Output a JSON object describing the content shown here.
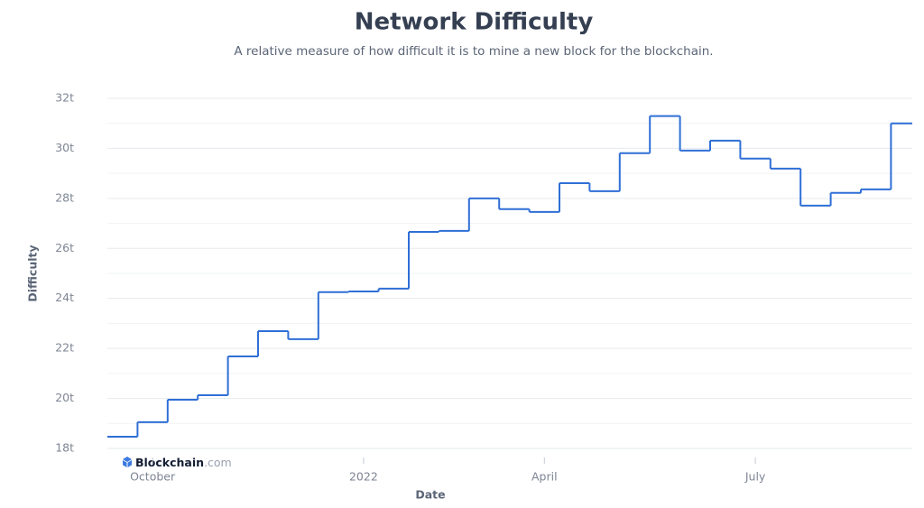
{
  "chart_data": {
    "type": "step",
    "title": "Network Difficulty",
    "subtitle": "A relative measure of how difficult it is to mine a new block for the blockchain.",
    "x_label": "Date",
    "y_label": "Difficulty",
    "watermark": {
      "name": "Blockchain",
      "domain": ".com"
    },
    "categories": [
      null,
      "October",
      null,
      null,
      null,
      null,
      null,
      null,
      "2022",
      null,
      null,
      null,
      null,
      null,
      "April",
      null,
      null,
      null,
      null,
      null,
      null,
      "July",
      null,
      null,
      null,
      null,
      null
    ],
    "series": [
      {
        "name": "Difficulty",
        "color": "#2f6fd6",
        "values": [
          18.47,
          19.05,
          19.95,
          20.13,
          21.68,
          22.69,
          22.37,
          24.25,
          24.28,
          24.39,
          26.66,
          26.7,
          28.0,
          27.57,
          27.46,
          28.61,
          28.29,
          29.81,
          31.29,
          29.91,
          30.31,
          29.59,
          29.19,
          27.71,
          28.22,
          28.36,
          31.0
        ]
      }
    ],
    "ylim": [
      18,
      32
    ],
    "yticks": [
      {
        "value": 18,
        "label": "18t"
      },
      {
        "value": 20,
        "label": "20t"
      },
      {
        "value": 22,
        "label": "22t"
      },
      {
        "value": 24,
        "label": "24t"
      },
      {
        "value": 26,
        "label": "26t"
      },
      {
        "value": 28,
        "label": "28t"
      },
      {
        "value": 30,
        "label": "30t"
      },
      {
        "value": 32,
        "label": "32t"
      }
    ],
    "minor_grid": [
      19,
      21,
      23,
      25,
      27,
      29,
      31
    ],
    "grid": true
  }
}
